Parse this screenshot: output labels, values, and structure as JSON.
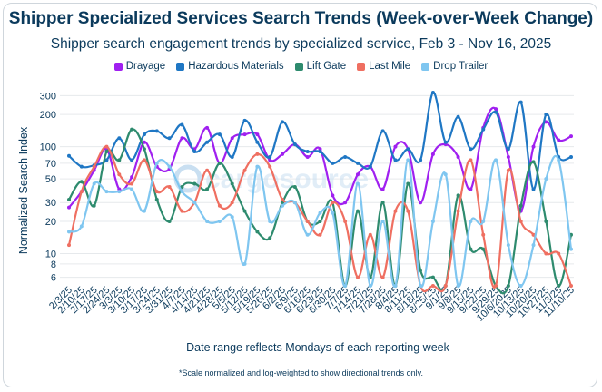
{
  "chart_data": {
    "type": "line",
    "title": "Shipper Specialized Services Search Trends (Week-over-Week Change)",
    "subtitle": "Shipper search engagement trends by specialized service, Feb 3 - Nov 16, 2025",
    "xlabel": "Date range reflects Mondays of each reporting week",
    "ylabel": "Normalized Search Index",
    "yscale": "log",
    "ylim": [
      5,
      360
    ],
    "yticks": [
      6,
      8,
      10,
      20,
      30,
      50,
      70,
      100,
      200,
      300
    ],
    "footnote": "*Scale normalized and log-weighted to show directional trends only.",
    "watermark": "cargosource",
    "categories": [
      "2/3/25",
      "2/10/25",
      "2/17/25",
      "2/24/25",
      "3/3/25",
      "3/10/25",
      "3/17/25",
      "3/24/25",
      "3/31/25",
      "4/7/25",
      "4/14/25",
      "4/21/25",
      "4/28/25",
      "5/5/25",
      "5/12/25",
      "5/19/25",
      "5/26/25",
      "6/2/25",
      "6/9/25",
      "6/16/25",
      "6/23/25",
      "6/30/25",
      "7/7/25",
      "7/14/25",
      "7/21/25",
      "7/28/25",
      "8/4/25",
      "8/11/25",
      "8/18/25",
      "8/25/25",
      "9/1/25",
      "9/8/25",
      "9/15/25",
      "9/22/25",
      "9/29/25",
      "10/6/2025",
      "10/13/25",
      "10/20/25",
      "10/27/25",
      "11/3/25",
      "11/10/25"
    ],
    "series": [
      {
        "name": "Drayage",
        "color": "#a020f0",
        "values": [
          27,
          38,
          60,
          95,
          40,
          52,
          110,
          65,
          62,
          120,
          95,
          150,
          70,
          120,
          130,
          130,
          75,
          85,
          105,
          80,
          95,
          35,
          30,
          55,
          65,
          40,
          100,
          95,
          30,
          85,
          105,
          80,
          40,
          150,
          225,
          80,
          25,
          100,
          170,
          115,
          125
        ]
      },
      {
        "name": "Hazardous Materials",
        "color": "#1f77c4",
        "values": [
          82,
          65,
          67,
          75,
          120,
          75,
          130,
          140,
          120,
          160,
          90,
          110,
          130,
          80,
          175,
          110,
          80,
          170,
          105,
          90,
          90,
          70,
          80,
          70,
          65,
          140,
          75,
          95,
          75,
          320,
          110,
          190,
          95,
          145,
          210,
          95,
          260,
          40,
          200,
          80,
          80
        ]
      },
      {
        "name": "Lift Gate",
        "color": "#2e8b6e",
        "values": [
          32,
          47,
          28,
          90,
          75,
          145,
          95,
          32,
          20,
          42,
          45,
          40,
          70,
          45,
          25,
          16,
          14,
          30,
          42,
          20,
          20,
          30,
          5,
          25,
          6,
          30,
          5,
          45,
          7,
          6,
          5,
          35,
          11,
          11,
          5,
          5,
          28,
          72,
          20,
          5,
          15
        ]
      },
      {
        "name": "Last Mile",
        "color": "#ef6f61",
        "values": [
          12,
          38,
          65,
          100,
          55,
          45,
          75,
          38,
          42,
          25,
          30,
          60,
          28,
          30,
          60,
          85,
          65,
          32,
          30,
          20,
          15,
          30,
          20,
          6,
          15,
          6,
          25,
          25,
          5,
          5,
          5,
          25,
          75,
          15,
          5,
          60,
          20,
          15,
          10,
          10,
          5
        ]
      },
      {
        "name": "Drop Trailer",
        "color": "#7fc6f0",
        "values": [
          16,
          18,
          45,
          38,
          38,
          40,
          25,
          70,
          65,
          38,
          30,
          20,
          20,
          22,
          8,
          65,
          20,
          28,
          30,
          15,
          24,
          24,
          5,
          45,
          5,
          20,
          5,
          75,
          5,
          20,
          55,
          5,
          20,
          20,
          75,
          12,
          5,
          12,
          50,
          75,
          11
        ]
      }
    ]
  }
}
